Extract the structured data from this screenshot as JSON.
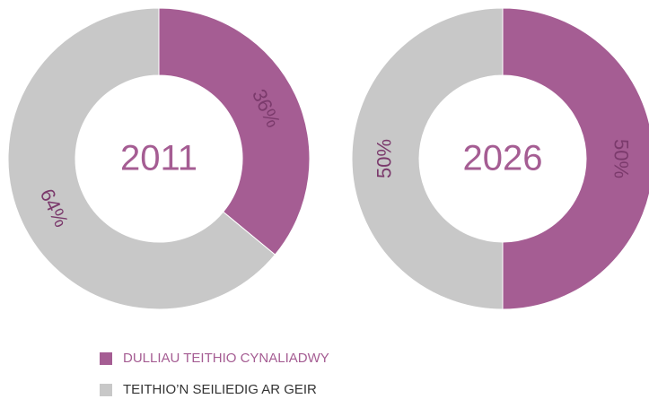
{
  "chart_data": [
    {
      "type": "donut",
      "title": "2011",
      "values": [
        36,
        64
      ],
      "value_labels": [
        "36%",
        "64%"
      ],
      "colors": [
        "#a55d93",
        "#c8c8c8"
      ]
    },
    {
      "type": "donut",
      "title": "2026",
      "values": [
        50,
        50
      ],
      "value_labels": [
        "50%",
        "50%"
      ],
      "colors": [
        "#a55d93",
        "#c8c8c8"
      ]
    }
  ],
  "legend": [
    "DULLIAU TEITHIO CYNALIADWY",
    "TEITHIO’N SEILIEDIG AR GEIR"
  ]
}
